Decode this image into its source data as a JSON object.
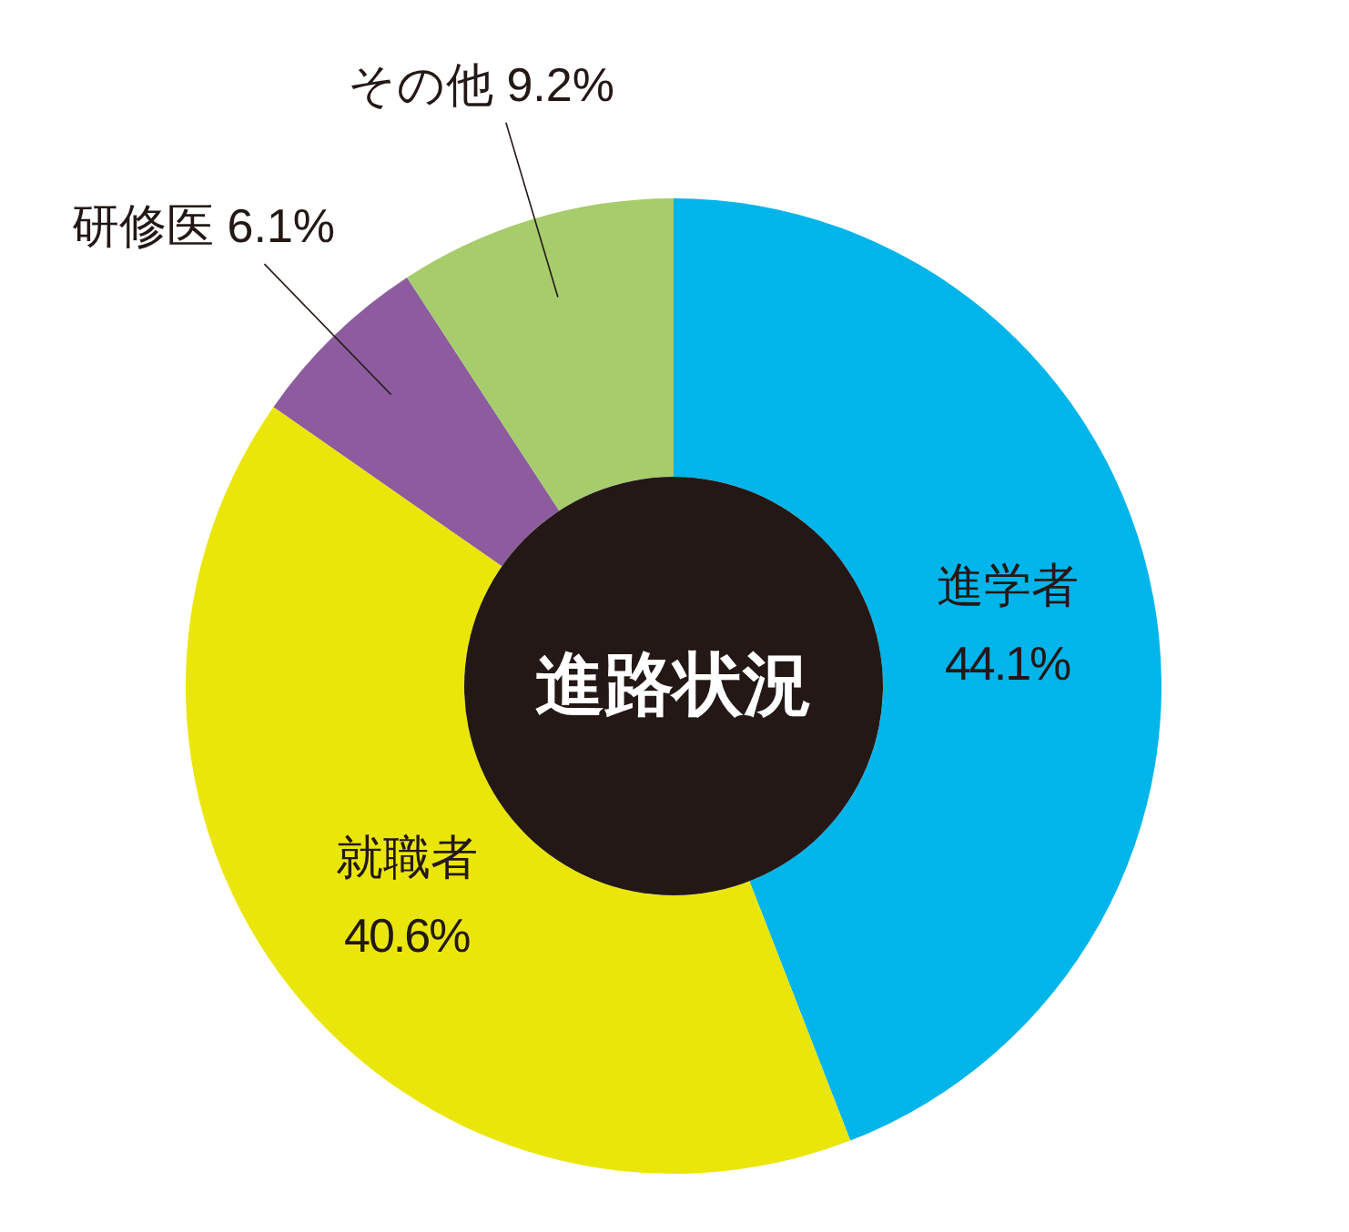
{
  "chart_data": {
    "type": "donut",
    "title": "進路状況",
    "categories": [
      "進学者",
      "就職者",
      "研修医",
      "その他"
    ],
    "values": [
      44.1,
      40.6,
      6.1,
      9.2
    ],
    "colors": [
      "#00b5ea",
      "#ebe60a",
      "#8c5c9e",
      "#a6cc6c"
    ],
    "value_labels": [
      "44.1%",
      "40.6%",
      "6.1%",
      "9.2%"
    ]
  }
}
